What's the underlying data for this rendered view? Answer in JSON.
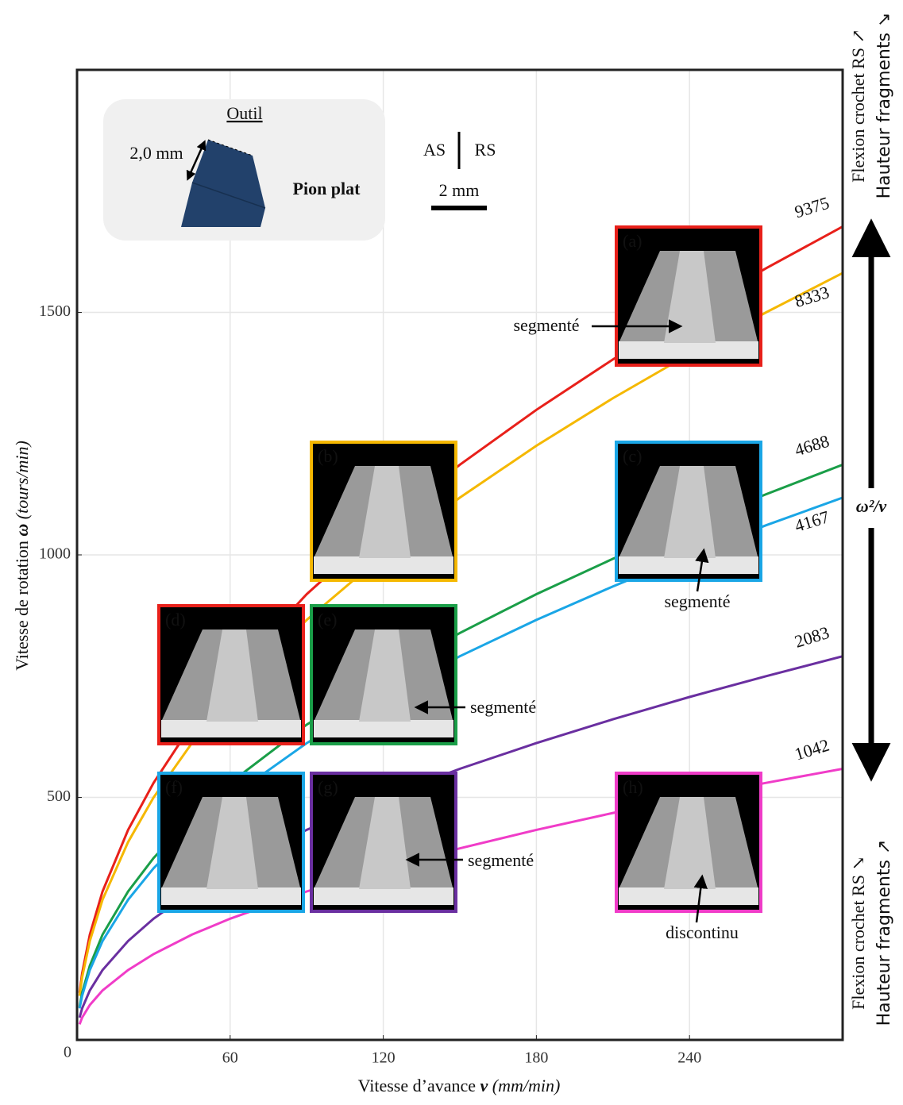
{
  "chart_data": {
    "type": "line",
    "xlabel": {
      "text": "Vitesse d’avance",
      "symbol": "ν",
      "unit": "(mm/min)"
    },
    "ylabel": {
      "text": "Vitesse de rotation",
      "symbol": "ω",
      "unit": "(tours/min)"
    },
    "xlim": [
      0,
      300
    ],
    "ylim": [
      0,
      2000
    ],
    "xticks": [
      0,
      60,
      120,
      180,
      240
    ],
    "yticks": [
      500,
      1000,
      1500
    ],
    "grid": true,
    "x": [
      1,
      2,
      5,
      10,
      20,
      30,
      45,
      60,
      90,
      120,
      150,
      180,
      210,
      240,
      270,
      300
    ],
    "series": [
      {
        "name": "9375",
        "color": "#e8201a",
        "values": [
          97,
          137,
          217,
          306,
          433,
          530,
          650,
          750,
          919,
          1061,
          1186,
          1299,
          1403,
          1500,
          1591,
          1677
        ]
      },
      {
        "name": "8333",
        "color": "#f5b800",
        "values": [
          91,
          129,
          204,
          289,
          408,
          500,
          612,
          707,
          866,
          1000,
          1118,
          1225,
          1323,
          1414,
          1500,
          1581
        ]
      },
      {
        "name": "4688",
        "color": "#1a9e48",
        "values": [
          68,
          97,
          153,
          217,
          306,
          375,
          459,
          530,
          650,
          750,
          839,
          919,
          992,
          1061,
          1125,
          1186
        ]
      },
      {
        "name": "4167",
        "color": "#1aa6e6",
        "values": [
          65,
          91,
          144,
          204,
          289,
          354,
          433,
          500,
          612,
          707,
          791,
          866,
          935,
          1000,
          1061,
          1118
        ]
      },
      {
        "name": "2083",
        "color": "#6a2fa0",
        "values": [
          46,
          65,
          102,
          144,
          204,
          250,
          306,
          354,
          433,
          500,
          559,
          612,
          661,
          707,
          750,
          791
        ]
      },
      {
        "name": "1042",
        "color": "#f03cc8",
        "values": [
          32,
          46,
          72,
          102,
          144,
          177,
          217,
          250,
          306,
          354,
          395,
          433,
          468,
          500,
          530,
          559
        ]
      }
    ],
    "panels": [
      {
        "label": "(a)",
        "color": "#e8201a",
        "annotation": "segmenté"
      },
      {
        "label": "(b)",
        "color": "#f5b800"
      },
      {
        "label": "(c)",
        "color": "#1aa6e6",
        "annotation": "segmenté"
      },
      {
        "label": "(d)",
        "color": "#e8201a"
      },
      {
        "label": "(e)",
        "color": "#1a9e48",
        "annotation": "segmenté"
      },
      {
        "label": "(f)",
        "color": "#1aa6e6"
      },
      {
        "label": "(g)",
        "color": "#6a2fa0",
        "annotation": "segmenté"
      },
      {
        "label": "(h)",
        "color": "#f03cc8",
        "annotation": "discontinu"
      }
    ],
    "tool": {
      "title": "Outil",
      "dimension": "2,0 mm",
      "name": "Pion plat"
    },
    "scale": {
      "left": "AS",
      "right": "RS",
      "length": "2 mm"
    },
    "trend": {
      "label": "ω²/ν",
      "top": [
        "Flexion crochet RS ↗",
        "Hauteur fragments ↘"
      ],
      "bottom": [
        "Flexion crochet RS ↘",
        "Hauteur fragments ↗"
      ]
    }
  }
}
